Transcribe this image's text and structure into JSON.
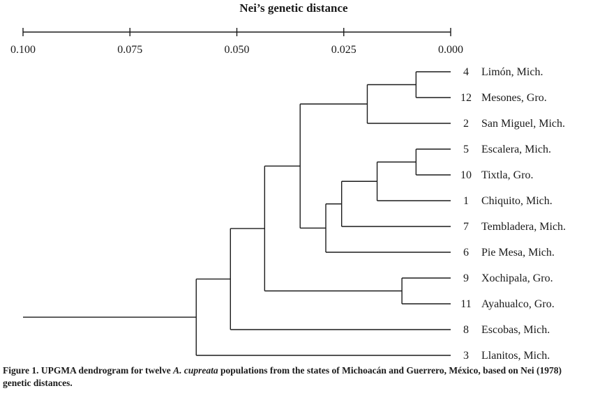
{
  "chart_data": {
    "type": "dendrogram",
    "title": "Nei’s genetic distance",
    "axis": {
      "min": 0.0,
      "max": 0.1,
      "reversed": true,
      "ticks": [
        0.1,
        0.075,
        0.05,
        0.025,
        0.0
      ],
      "tick_labels": [
        "0.100",
        "0.075",
        "0.050",
        "0.025",
        "0.000"
      ]
    },
    "leaves": [
      {
        "id": 4,
        "num": "4",
        "name": "Limón, Mich."
      },
      {
        "id": 12,
        "num": "12",
        "name": "Mesones, Gro."
      },
      {
        "id": 2,
        "num": "2",
        "name": "San Miguel, Mich."
      },
      {
        "id": 5,
        "num": "5",
        "name": "Escalera, Mich."
      },
      {
        "id": 10,
        "num": "10",
        "name": "Tixtla, Gro."
      },
      {
        "id": 1,
        "num": "1",
        "name": "Chiquito, Mich."
      },
      {
        "id": 7,
        "num": "7",
        "name": "Tembladera, Mich."
      },
      {
        "id": 6,
        "num": "6",
        "name": "Pie Mesa, Mich."
      },
      {
        "id": 9,
        "num": "9",
        "name": "Xochipala, Gro."
      },
      {
        "id": 11,
        "num": "11",
        "name": "Ayahualco, Gro."
      },
      {
        "id": 8,
        "num": "8",
        "name": "Escobas, Mich."
      },
      {
        "id": 3,
        "num": "3",
        "name": "Llanitos, Mich."
      }
    ],
    "tree": {
      "height": 0.0595,
      "children": [
        {
          "height": 0.0515,
          "children": [
            {
              "height": 0.0435,
              "children": [
                {
                  "height": 0.0352,
                  "children": [
                    {
                      "height": 0.0195,
                      "children": [
                        {
                          "height": 0.0081,
                          "children": [
                            {
                              "leaf": 4
                            },
                            {
                              "leaf": 12
                            }
                          ]
                        },
                        {
                          "leaf": 2
                        }
                      ]
                    },
                    {
                      "height": 0.0292,
                      "children": [
                        {
                          "height": 0.0255,
                          "children": [
                            {
                              "height": 0.0172,
                              "children": [
                                {
                                  "height": 0.0081,
                                  "children": [
                                    {
                                      "leaf": 5
                                    },
                                    {
                                      "leaf": 10
                                    }
                                  ]
                                },
                                {
                                  "leaf": 1
                                }
                              ]
                            },
                            {
                              "leaf": 7
                            }
                          ]
                        },
                        {
                          "leaf": 6
                        }
                      ]
                    }
                  ]
                },
                {
                  "height": 0.0114,
                  "children": [
                    {
                      "leaf": 9
                    },
                    {
                      "leaf": 11
                    }
                  ]
                }
              ]
            },
            {
              "leaf": 8
            }
          ]
        },
        {
          "leaf": 3
        }
      ]
    },
    "root_stem_length": 0.0405
  },
  "caption": {
    "prefix": "Figure 1. UPGMA dendrogram for twelve ",
    "species": "A. cupreata",
    "suffix": " populations from the states of Michoacán and Guerrero, México, based on Nei (1978) genetic distances."
  }
}
